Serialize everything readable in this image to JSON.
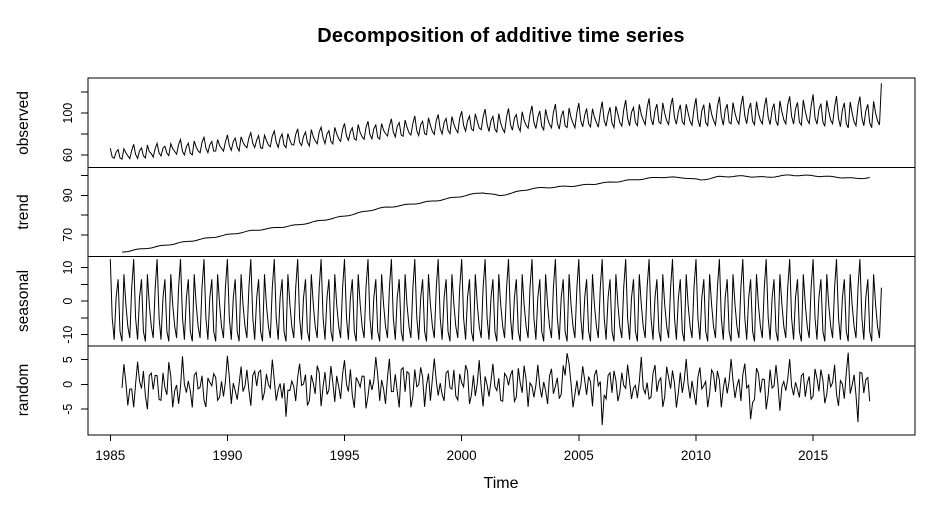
{
  "title": "Decomposition of additive time series",
  "x_axis_title": "Time",
  "colors": {
    "line": "#000000",
    "background": "#ffffff",
    "text": "#000000"
  },
  "chart_data": {
    "type": "line",
    "title": "Decomposition of additive time series",
    "xlabel": "Time",
    "grid": false,
    "legend": "none",
    "x_ticks": [
      1985,
      1990,
      1995,
      2000,
      2005,
      2010,
      2015
    ],
    "x_axis_range": [
      1984.05,
      2019.35
    ],
    "data_start_year": 1985.0,
    "data_end_year": 2017.917,
    "points_per_year": 12,
    "panels": [
      {
        "label": "observed",
        "ylim": [
          48.5,
          133.5
        ],
        "ticks": [
          60,
          80,
          100,
          120
        ],
        "labeled_ticks": [
          60,
          100
        ],
        "range_start": 1985.0,
        "range_end": 2017.917,
        "series_rule": {
          "compose": "trend + seasonal*amp + noise",
          "amp_start": 0.5,
          "amp_end": 1.22,
          "noise_amplitude": 1.1,
          "seed": 7,
          "final_value": 128.5
        }
      },
      {
        "label": "trend",
        "ylim": [
          59,
          104.3
        ],
        "ticks": [
          70,
          80,
          90,
          100
        ],
        "labeled_ticks": [
          70,
          90
        ],
        "range_start": 1985.5,
        "range_end": 2017.417,
        "wiggle_amplitude": 0.25,
        "keypoints": [
          [
            1985.5,
            61.3
          ],
          [
            1987,
            64
          ],
          [
            1989,
            68
          ],
          [
            1991,
            72
          ],
          [
            1993,
            75
          ],
          [
            1995,
            79.5
          ],
          [
            1996.5,
            83.5
          ],
          [
            1997.5,
            85
          ],
          [
            1999,
            87.5
          ],
          [
            2000.9,
            91.5
          ],
          [
            2001.6,
            89.8
          ],
          [
            2003,
            93.5
          ],
          [
            2005,
            95
          ],
          [
            2007,
            97.5
          ],
          [
            2008.5,
            99.3
          ],
          [
            2009.5,
            99
          ],
          [
            2010.2,
            97.8
          ],
          [
            2011,
            99.5
          ],
          [
            2012,
            99.8
          ],
          [
            2013,
            99.2
          ],
          [
            2014,
            100.3
          ],
          [
            2015,
            100
          ],
          [
            2016,
            99.3
          ],
          [
            2016.8,
            98.6
          ],
          [
            2017.417,
            99
          ]
        ]
      },
      {
        "label": "seasonal",
        "ylim": [
          -13.3,
          13.3
        ],
        "ticks": [
          -10,
          -5,
          0,
          5,
          10
        ],
        "labeled_ticks": [
          -10,
          0,
          10
        ],
        "range_start": 1985.0,
        "range_end": 2017.917,
        "monthly_pattern": [
          12.5,
          -5,
          -11.5,
          1,
          6.5,
          -9,
          -12,
          8,
          -1,
          -7.5,
          -11,
          4
        ]
      },
      {
        "label": "random",
        "ylim": [
          -10.2,
          7.8
        ],
        "ticks": [
          -5,
          0,
          5
        ],
        "labeled_ticks": [
          -5,
          0,
          5
        ],
        "range_start": 1985.5,
        "range_end": 2017.417,
        "model": {
          "sin1_amp": 3.0,
          "sin1_freq": 1.9,
          "sin1_phase": 0.4,
          "sin2_amp": 1.7,
          "sin2_freq": 0.83,
          "sin2_phase": 2.1,
          "noise_amplitude": 1.2,
          "seed": 13,
          "clamp": [
            -8.3,
            6.8
          ],
          "anomalies": {
            "90": -6.5,
            "234": 6.3,
            "252": -8.2,
            "328": -7.0,
            "378": 6.4,
            "383": -7.6
          }
        }
      }
    ]
  }
}
